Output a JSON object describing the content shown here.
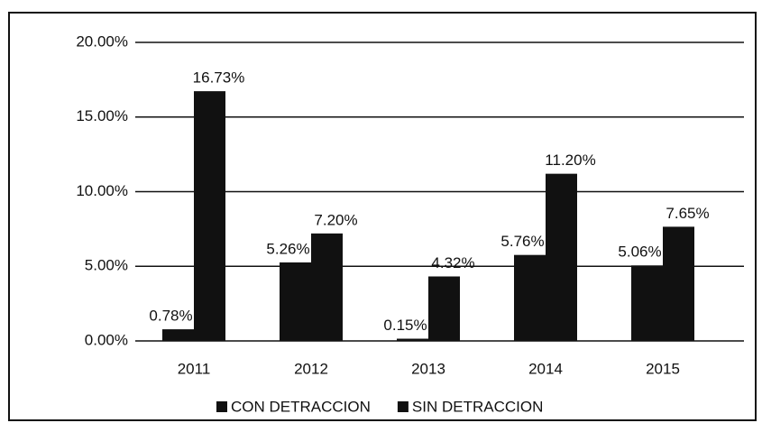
{
  "chart_data": {
    "type": "bar",
    "categories": [
      "2011",
      "2012",
      "2013",
      "2014",
      "2015"
    ],
    "series": [
      {
        "name": "CON DETRACCION",
        "color": "#111111",
        "values": [
          0.78,
          5.26,
          0.15,
          5.76,
          5.06
        ],
        "value_labels": [
          "0.78%",
          "5.26%",
          "0.15%",
          "5.76%",
          "5.06%"
        ]
      },
      {
        "name": "SIN DETRACCION",
        "color": "#111111",
        "values": [
          16.73,
          7.2,
          4.32,
          11.2,
          7.65
        ],
        "value_labels": [
          "16.73%",
          "7.20%",
          "4.32%",
          "11.20%",
          "7.65%"
        ]
      }
    ],
    "ylim": [
      0,
      20
    ],
    "yticks": [
      {
        "value": 0,
        "label": "0.00%"
      },
      {
        "value": 5,
        "label": "5.00%"
      },
      {
        "value": 10,
        "label": "10.00%"
      },
      {
        "value": 15,
        "label": "15.00%"
      },
      {
        "value": 20,
        "label": "20.00%"
      }
    ],
    "grid": true,
    "legend": "bottom"
  }
}
